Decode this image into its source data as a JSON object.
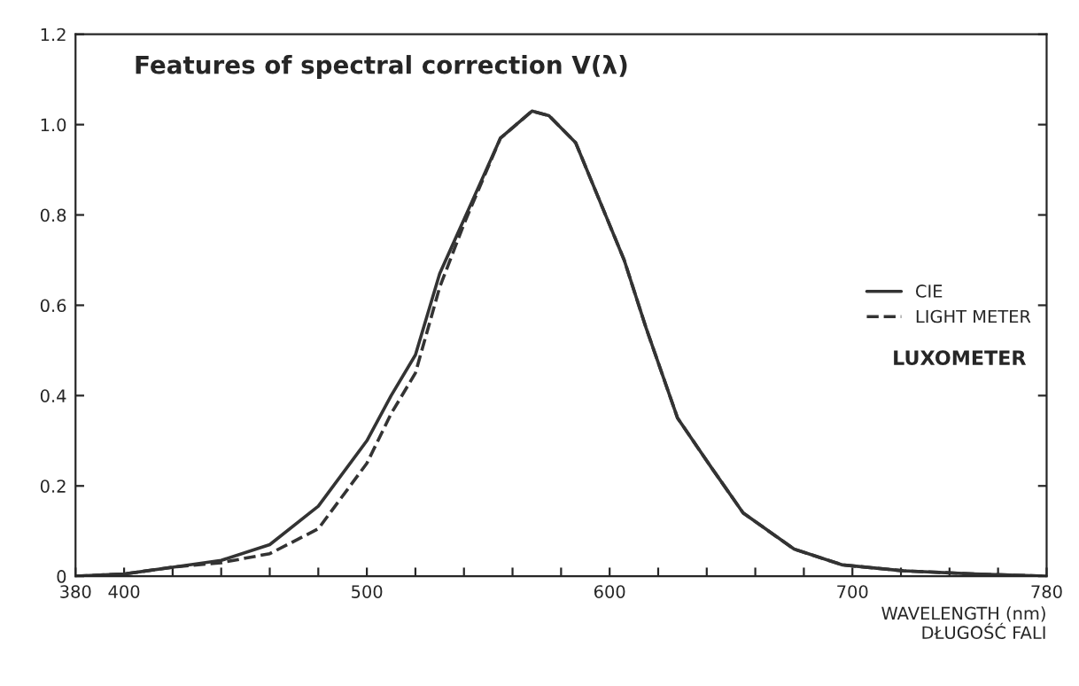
{
  "chart_data": {
    "type": "line",
    "title": "Features of spectral correction V(λ)",
    "xlabel": "WAVELENGTH (nm)\nDŁUGOŚĆ FALI",
    "annotations": [
      "LUXOMETER"
    ],
    "series": [
      {
        "name": "CIE",
        "color": "#333333",
        "line_style": "solid",
        "x": [
          380,
          400,
          420,
          440,
          460,
          480,
          500,
          510,
          520,
          530,
          540,
          555,
          568,
          575,
          586,
          606,
          615,
          628,
          642,
          655,
          676,
          696,
          721,
          750,
          780
        ],
        "values": [
          0,
          0.005,
          0.02,
          0.035,
          0.07,
          0.155,
          0.3,
          0.4,
          0.49,
          0.67,
          0.79,
          0.97,
          1.03,
          1.02,
          0.96,
          0.7,
          0.55,
          0.35,
          0.24,
          0.14,
          0.06,
          0.025,
          0.012,
          0.005,
          0
        ]
      },
      {
        "name": "LIGHT METER",
        "color": "#333333",
        "line_style": "dashed",
        "x": [
          380,
          400,
          420,
          440,
          460,
          480,
          500,
          510,
          520,
          530,
          540,
          555,
          568,
          575,
          586,
          606,
          615,
          628,
          642,
          655,
          676,
          696,
          721,
          750,
          780
        ],
        "values": [
          0,
          0.005,
          0.02,
          0.03,
          0.05,
          0.105,
          0.25,
          0.36,
          0.45,
          0.64,
          0.78,
          0.97,
          1.03,
          1.02,
          0.96,
          0.7,
          0.55,
          0.35,
          0.24,
          0.14,
          0.06,
          0.025,
          0.012,
          0.005,
          0
        ]
      }
    ],
    "xlim": [
      380,
      780
    ],
    "xticks": [
      380,
      400,
      {
        "value": 420,
        "label": null
      },
      {
        "value": 440,
        "label": null
      },
      {
        "value": 460,
        "label": null
      },
      {
        "value": 480,
        "label": null
      },
      500,
      {
        "value": 520,
        "label": null
      },
      {
        "value": 540,
        "label": null
      },
      {
        "value": 560,
        "label": null
      },
      {
        "value": 580,
        "label": null
      },
      600,
      {
        "value": 620,
        "label": null
      },
      {
        "value": 640,
        "label": null
      },
      {
        "value": 660,
        "label": null
      },
      {
        "value": 680,
        "label": null
      },
      700,
      {
        "value": 720,
        "label": null
      },
      {
        "value": 740,
        "label": null
      },
      {
        "value": 760,
        "label": null
      },
      780
    ],
    "ylim": [
      0,
      1.2
    ],
    "yticks": [
      0,
      0.2,
      0.4,
      0.6,
      0.8,
      {
        "value": 1.0,
        "label": "1.0"
      },
      1.2
    ],
    "grid": false,
    "legend": "right"
  }
}
